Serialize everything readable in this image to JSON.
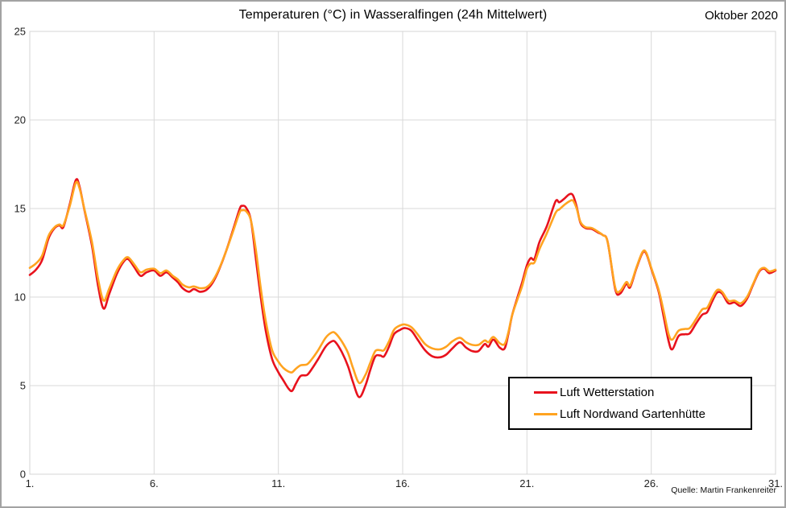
{
  "header": {
    "title": "Temperaturen (°C) in Wasseralfingen (24h Mittelwert)",
    "period": "Oktober 2020"
  },
  "footer": {
    "source": "Quelle: Martin Frankenreiter"
  },
  "colors": {
    "grid": "#d9d9d9",
    "plot_border": "#d4d4d4",
    "series_red": "#e8121d",
    "series_orange": "#ffa320"
  },
  "chart_data": {
    "type": "line",
    "title": "Temperaturen (°C) in Wasseralfingen (24h Mittelwert)",
    "right_annotation": "Oktober 2020",
    "source": "Quelle: Martin Frankenreiter",
    "xlabel": "",
    "ylabel": "",
    "xlim": [
      1,
      31
    ],
    "ylim": [
      0,
      25
    ],
    "grid": true,
    "legend_position": "inside-bottom-right",
    "x_ticks": [
      {
        "day": 1,
        "label": "1."
      },
      {
        "day": 6,
        "label": "6."
      },
      {
        "day": 11,
        "label": "11."
      },
      {
        "day": 16,
        "label": "16."
      },
      {
        "day": 21,
        "label": "21."
      },
      {
        "day": 26,
        "label": "26."
      },
      {
        "day": 31,
        "label": "31."
      }
    ],
    "y_ticks": [
      {
        "value": 0,
        "label": "0"
      },
      {
        "value": 5,
        "label": "5"
      },
      {
        "value": 10,
        "label": "10"
      },
      {
        "value": 15,
        "label": "15"
      },
      {
        "value": 20,
        "label": "20"
      },
      {
        "value": 25,
        "label": "25"
      }
    ],
    "x": [
      1.0,
      1.25,
      1.5,
      1.75,
      2.0,
      2.2,
      2.35,
      2.6,
      2.85,
      3.0,
      3.2,
      3.5,
      3.75,
      3.97,
      4.2,
      4.5,
      4.75,
      4.95,
      5.2,
      5.45,
      5.7,
      6.0,
      6.25,
      6.5,
      6.75,
      6.95,
      7.15,
      7.4,
      7.6,
      7.85,
      8.1,
      8.35,
      8.6,
      8.9,
      9.2,
      9.45,
      9.55,
      9.7,
      9.9,
      10.1,
      10.3,
      10.5,
      10.75,
      11.0,
      11.2,
      11.4,
      11.55,
      11.7,
      11.9,
      12.15,
      12.35,
      12.6,
      12.9,
      13.15,
      13.3,
      13.55,
      13.8,
      14.0,
      14.25,
      14.5,
      14.7,
      14.9,
      15.1,
      15.25,
      15.45,
      15.65,
      15.9,
      16.1,
      16.35,
      16.6,
      16.9,
      17.2,
      17.5,
      17.75,
      18.0,
      18.3,
      18.55,
      18.8,
      19.05,
      19.3,
      19.45,
      19.65,
      19.9,
      20.1,
      20.25,
      20.4,
      20.6,
      20.8,
      21.0,
      21.15,
      21.3,
      21.5,
      21.8,
      22.15,
      22.3,
      22.5,
      22.7,
      22.85,
      23.0,
      23.15,
      23.35,
      23.6,
      23.85,
      24.05,
      24.25,
      24.55,
      24.75,
      25.0,
      25.15,
      25.4,
      25.65,
      25.8,
      26.0,
      26.3,
      26.5,
      26.7,
      26.85,
      27.1,
      27.35,
      27.55,
      27.8,
      28.05,
      28.25,
      28.45,
      28.65,
      28.85,
      29.1,
      29.35,
      29.6,
      29.85,
      30.1,
      30.35,
      30.55,
      30.75,
      31.0
    ],
    "series": [
      {
        "name": "Luft Wetterstation",
        "color": "#e8121d",
        "values": [
          11.25,
          11.55,
          12.1,
          13.3,
          13.9,
          14.05,
          13.95,
          15.2,
          16.6,
          16.25,
          14.9,
          12.9,
          10.6,
          9.35,
          10.2,
          11.3,
          11.95,
          12.15,
          11.7,
          11.2,
          11.4,
          11.5,
          11.2,
          11.4,
          11.1,
          10.85,
          10.5,
          10.3,
          10.45,
          10.3,
          10.4,
          10.8,
          11.5,
          12.6,
          13.9,
          15.0,
          15.15,
          15.05,
          14.3,
          12.1,
          9.9,
          8.05,
          6.5,
          5.75,
          5.3,
          4.85,
          4.7,
          5.1,
          5.55,
          5.6,
          5.95,
          6.5,
          7.2,
          7.5,
          7.45,
          6.9,
          6.1,
          5.2,
          4.35,
          5.0,
          5.9,
          6.65,
          6.7,
          6.65,
          7.2,
          7.9,
          8.15,
          8.25,
          8.1,
          7.6,
          7.0,
          6.65,
          6.6,
          6.75,
          7.1,
          7.45,
          7.15,
          6.95,
          6.95,
          7.35,
          7.2,
          7.6,
          7.15,
          7.1,
          7.9,
          8.95,
          9.9,
          10.8,
          11.8,
          12.2,
          12.15,
          13.1,
          14.0,
          15.4,
          15.35,
          15.55,
          15.8,
          15.75,
          15.1,
          14.2,
          13.9,
          13.85,
          13.65,
          13.5,
          13.1,
          10.45,
          10.2,
          10.75,
          10.55,
          11.6,
          12.5,
          12.45,
          11.6,
          10.3,
          8.9,
          7.5,
          7.05,
          7.8,
          7.9,
          7.95,
          8.5,
          9.0,
          9.15,
          9.75,
          10.25,
          10.2,
          9.65,
          9.7,
          9.5,
          9.9,
          10.7,
          11.45,
          11.6,
          11.35,
          11.5
        ]
      },
      {
        "name": "Luft Nordwand Gartenhütte",
        "color": "#ffa320",
        "values": [
          11.65,
          11.9,
          12.35,
          13.45,
          13.95,
          14.1,
          14.05,
          15.1,
          16.45,
          16.15,
          14.95,
          13.1,
          11.0,
          9.8,
          10.5,
          11.5,
          12.05,
          12.25,
          11.85,
          11.4,
          11.55,
          11.6,
          11.35,
          11.5,
          11.2,
          11.0,
          10.7,
          10.55,
          10.6,
          10.5,
          10.55,
          10.9,
          11.55,
          12.6,
          13.8,
          14.8,
          14.9,
          14.85,
          14.3,
          12.6,
          10.4,
          8.6,
          7.0,
          6.35,
          6.0,
          5.8,
          5.75,
          5.95,
          6.15,
          6.2,
          6.5,
          7.0,
          7.7,
          8.0,
          7.95,
          7.5,
          6.85,
          6.0,
          5.15,
          5.6,
          6.3,
          6.95,
          7.0,
          7.0,
          7.5,
          8.15,
          8.4,
          8.45,
          8.3,
          7.9,
          7.35,
          7.1,
          7.05,
          7.2,
          7.5,
          7.7,
          7.45,
          7.3,
          7.3,
          7.55,
          7.45,
          7.75,
          7.4,
          7.35,
          8.0,
          8.95,
          9.8,
          10.6,
          11.6,
          11.9,
          11.95,
          12.7,
          13.6,
          14.75,
          14.95,
          15.2,
          15.4,
          15.45,
          15.0,
          14.25,
          13.95,
          13.9,
          13.7,
          13.5,
          13.1,
          10.55,
          10.35,
          10.85,
          10.65,
          11.65,
          12.55,
          12.5,
          11.65,
          10.4,
          9.2,
          7.9,
          7.6,
          8.1,
          8.2,
          8.25,
          8.75,
          9.3,
          9.4,
          9.95,
          10.4,
          10.3,
          9.8,
          9.8,
          9.65,
          10.0,
          10.75,
          11.5,
          11.65,
          11.45,
          11.55
        ]
      }
    ]
  }
}
